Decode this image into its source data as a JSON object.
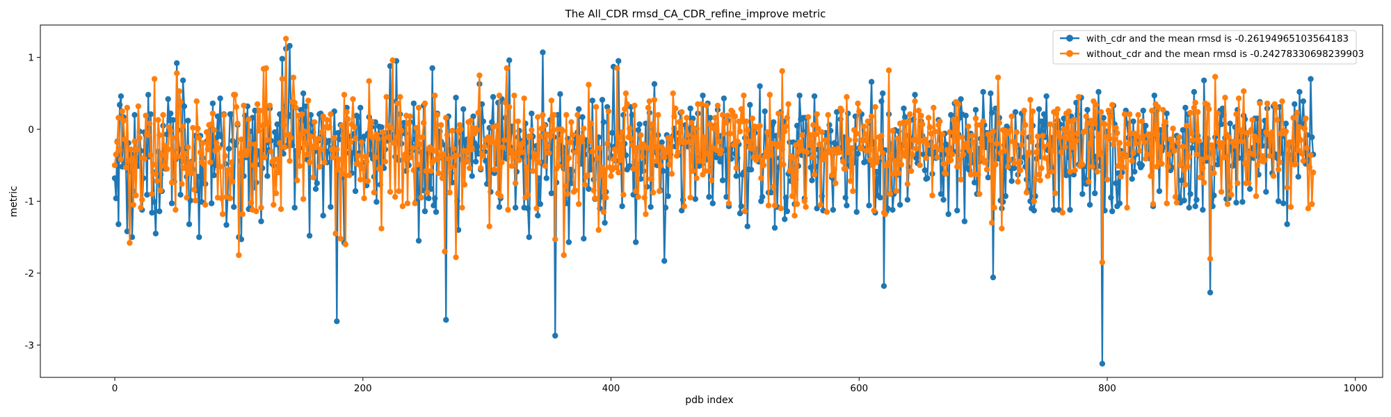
{
  "chart_data": {
    "type": "line",
    "title": "The All_CDR rmsd_CA_CDR_refine_improve metric",
    "xlabel": "pdb index",
    "ylabel": "metric",
    "xlim": [
      -60,
      1022
    ],
    "ylim": [
      -3.45,
      1.45
    ],
    "xticks": [
      0,
      200,
      400,
      600,
      800,
      1000
    ],
    "xtick_labels": [
      "0",
      "200",
      "400",
      "600",
      "800",
      "1000"
    ],
    "yticks": [
      1,
      0,
      -1,
      -2,
      -3
    ],
    "ytick_labels": [
      "1",
      "0",
      "-1",
      "-2",
      "-3"
    ],
    "grid": false,
    "legend_position": "top-right",
    "n_points": 967,
    "series": [
      {
        "name": "with_cdr and the mean rmsd is -0.26194965103564183",
        "color": "#1f77b4",
        "marker": "circle",
        "mean": -0.26194965103564183,
        "key_points": [
          [
            0,
            -0.68
          ],
          [
            3,
            -1.32
          ],
          [
            10,
            -1.42
          ],
          [
            14,
            -1.5
          ],
          [
            33,
            -1.45
          ],
          [
            46,
            -1.03
          ],
          [
            50,
            0.92
          ],
          [
            55,
            0.68
          ],
          [
            60,
            -1.32
          ],
          [
            68,
            -1.5
          ],
          [
            78,
            -1.03
          ],
          [
            90,
            -1.33
          ],
          [
            100,
            -1.5
          ],
          [
            102,
            -1.53
          ],
          [
            118,
            -1.28
          ],
          [
            135,
            0.98
          ],
          [
            138,
            1.12
          ],
          [
            141,
            1.16
          ],
          [
            157,
            -1.48
          ],
          [
            168,
            -1.2
          ],
          [
            179,
            -2.67
          ],
          [
            185,
            -1.58
          ],
          [
            222,
            0.88
          ],
          [
            227,
            0.95
          ],
          [
            245,
            -1.55
          ],
          [
            256,
            0.85
          ],
          [
            267,
            -2.65
          ],
          [
            277,
            -1.4
          ],
          [
            294,
            0.63
          ],
          [
            310,
            -1.08
          ],
          [
            318,
            0.96
          ],
          [
            334,
            -1.5
          ],
          [
            341,
            -1.2
          ],
          [
            345,
            1.07
          ],
          [
            355,
            -2.87
          ],
          [
            366,
            -1.57
          ],
          [
            378,
            -1.52
          ],
          [
            395,
            -1.3
          ],
          [
            402,
            0.87
          ],
          [
            406,
            0.95
          ],
          [
            420,
            -1.57
          ],
          [
            432,
            -1.08
          ],
          [
            435,
            0.63
          ],
          [
            440,
            -0.85
          ],
          [
            443,
            -1.83
          ],
          [
            482,
            -1.03
          ],
          [
            495,
            -1.07
          ],
          [
            505,
            -1.07
          ],
          [
            510,
            -1.35
          ],
          [
            520,
            0.6
          ],
          [
            532,
            -1.37
          ],
          [
            540,
            -1.25
          ],
          [
            552,
            0.47
          ],
          [
            570,
            -0.93
          ],
          [
            579,
            -1.12
          ],
          [
            598,
            -1.15
          ],
          [
            610,
            0.66
          ],
          [
            619,
            0.5
          ],
          [
            620,
            -2.18
          ],
          [
            623,
            -1.1
          ],
          [
            628,
            -0.9
          ],
          [
            645,
            0.48
          ],
          [
            668,
            -0.98
          ],
          [
            685,
            -1.28
          ],
          [
            695,
            -0.9
          ],
          [
            700,
            0.52
          ],
          [
            706,
            0.5
          ],
          [
            708,
            -2.06
          ],
          [
            715,
            -1.1
          ],
          [
            745,
            0.28
          ],
          [
            770,
            -1.12
          ],
          [
            786,
            -1.05
          ],
          [
            793,
            0.52
          ],
          [
            796,
            -3.26
          ],
          [
            808,
            -1.07
          ],
          [
            838,
            0.47
          ],
          [
            858,
            -0.95
          ],
          [
            863,
            0.3
          ],
          [
            870,
            0.52
          ],
          [
            878,
            0.68
          ],
          [
            883,
            -2.27
          ],
          [
            905,
            0.27
          ],
          [
            915,
            -0.83
          ],
          [
            928,
            -0.87
          ],
          [
            938,
            -1.0
          ],
          [
            945,
            -1.32
          ],
          [
            955,
            0.52
          ],
          [
            964,
            0.7
          ]
        ]
      },
      {
        "name": "without_cdr and the mean rmsd is -0.24278330698239903",
        "color": "#ff7f0e",
        "marker": "circle",
        "mean": -0.24278330698239903,
        "key_points": [
          [
            0,
            -0.5
          ],
          [
            6,
            0.25
          ],
          [
            10,
            0.3
          ],
          [
            12,
            -1.58
          ],
          [
            15,
            -1.05
          ],
          [
            23,
            -0.4
          ],
          [
            28,
            0.08
          ],
          [
            32,
            0.7
          ],
          [
            37,
            -0.85
          ],
          [
            50,
            0.78
          ],
          [
            52,
            0.53
          ],
          [
            75,
            -0.28
          ],
          [
            79,
            0.22
          ],
          [
            88,
            0.2
          ],
          [
            98,
            0.31
          ],
          [
            100,
            -1.75
          ],
          [
            103,
            -1.18
          ],
          [
            115,
            0.35
          ],
          [
            120,
            0.84
          ],
          [
            122,
            0.85
          ],
          [
            128,
            -1.05
          ],
          [
            135,
            0.7
          ],
          [
            138,
            1.26
          ],
          [
            144,
            0.72
          ],
          [
            158,
            -0.1
          ],
          [
            168,
            0.18
          ],
          [
            178,
            -1.45
          ],
          [
            182,
            -1.52
          ],
          [
            186,
            -1.6
          ],
          [
            192,
            0.42
          ],
          [
            205,
            0.67
          ],
          [
            215,
            -1.38
          ],
          [
            224,
            0.96
          ],
          [
            230,
            0.45
          ],
          [
            245,
            0.3
          ],
          [
            260,
            0.2
          ],
          [
            266,
            -1.7
          ],
          [
            275,
            -1.78
          ],
          [
            285,
            0.1
          ],
          [
            294,
            0.75
          ],
          [
            302,
            -1.35
          ],
          [
            310,
            0.47
          ],
          [
            316,
            0.85
          ],
          [
            322,
            0.47
          ],
          [
            340,
            -1.1
          ],
          [
            352,
            0.4
          ],
          [
            355,
            -1.53
          ],
          [
            362,
            -1.75
          ],
          [
            368,
            0.1
          ],
          [
            382,
            0.62
          ],
          [
            390,
            -1.4
          ],
          [
            398,
            0.25
          ],
          [
            405,
            0.85
          ],
          [
            412,
            0.5
          ],
          [
            430,
            0.3
          ],
          [
            455,
            0.1
          ],
          [
            470,
            0.35
          ],
          [
            490,
            0.2
          ],
          [
            505,
            0.28
          ],
          [
            520,
            0.05
          ],
          [
            538,
            0.81
          ],
          [
            548,
            -1.2
          ],
          [
            575,
            0.2
          ],
          [
            600,
            0.25
          ],
          [
            621,
            -1.18
          ],
          [
            624,
            0.82
          ],
          [
            640,
            0.1
          ],
          [
            660,
            0.3
          ],
          [
            680,
            0.35
          ],
          [
            697,
            -0.9
          ],
          [
            707,
            -1.3
          ],
          [
            712,
            0.72
          ],
          [
            715,
            -1.38
          ],
          [
            740,
            0.25
          ],
          [
            760,
            0.28
          ],
          [
            790,
            0.08
          ],
          [
            796,
            -1.85
          ],
          [
            800,
            -0.7
          ],
          [
            825,
            0.2
          ],
          [
            850,
            -0.35
          ],
          [
            870,
            0.3
          ],
          [
            883,
            -1.8
          ],
          [
            887,
            0.73
          ],
          [
            910,
            0.53
          ],
          [
            935,
            0.35
          ],
          [
            960,
            0.15
          ],
          [
            966,
            -0.6
          ]
        ]
      }
    ]
  }
}
